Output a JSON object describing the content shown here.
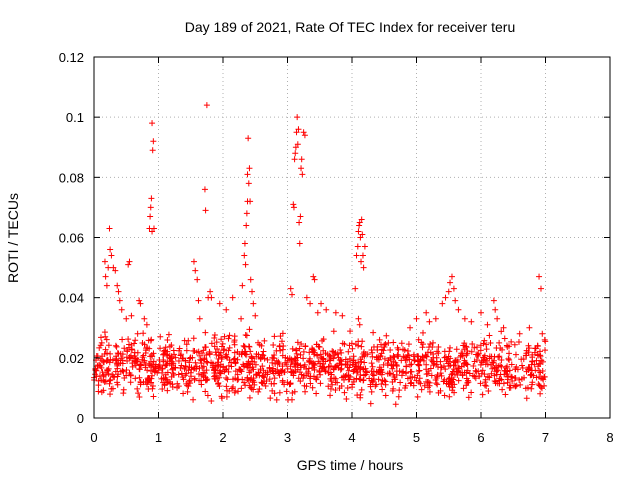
{
  "chart_data": {
    "type": "scatter",
    "title": "Day 189 of 2021, Rate Of TEC Index for receiver teru",
    "xlabel": "GPS time / hours",
    "ylabel": "ROTI / TECUs",
    "xlim": [
      0,
      8
    ],
    "ylim": [
      0,
      0.12
    ],
    "xticks": [
      "0",
      "1",
      "2",
      "3",
      "4",
      "5",
      "6",
      "7",
      "8"
    ],
    "yticks": [
      "0",
      "0.02",
      "0.04",
      "0.06",
      "0.08",
      "0.1",
      "0.12"
    ],
    "grid": true,
    "marker": "+",
    "color": "#ff0000",
    "series": [
      {
        "name": "ROTI",
        "baseline_description": "dense band of points between about 0.003 and 0.03 TECUs from 0 to 7 hours",
        "band": {
          "x_start": 0.0,
          "x_end": 7.0,
          "y_low": 0.003,
          "y_high": 0.03,
          "count": 1400
        },
        "points": [
          [
            0.17,
            0.052
          ],
          [
            0.18,
            0.047
          ],
          [
            0.2,
            0.044
          ],
          [
            0.22,
            0.05
          ],
          [
            0.24,
            0.063
          ],
          [
            0.25,
            0.056
          ],
          [
            0.27,
            0.054
          ],
          [
            0.3,
            0.05
          ],
          [
            0.33,
            0.049
          ],
          [
            0.36,
            0.044
          ],
          [
            0.38,
            0.042
          ],
          [
            0.4,
            0.039
          ],
          [
            0.43,
            0.036
          ],
          [
            0.5,
            0.033
          ],
          [
            0.53,
            0.051
          ],
          [
            0.55,
            0.052
          ],
          [
            0.58,
            0.034
          ],
          [
            0.7,
            0.039
          ],
          [
            0.72,
            0.038
          ],
          [
            0.78,
            0.033
          ],
          [
            0.82,
            0.031
          ],
          [
            0.86,
            0.063
          ],
          [
            0.87,
            0.067
          ],
          [
            0.88,
            0.07
          ],
          [
            0.89,
            0.073
          ],
          [
            0.9,
            0.062
          ],
          [
            0.9,
            0.098
          ],
          [
            0.91,
            0.089
          ],
          [
            0.92,
            0.092
          ],
          [
            0.93,
            0.063
          ],
          [
            1.55,
            0.052
          ],
          [
            1.57,
            0.049
          ],
          [
            1.6,
            0.046
          ],
          [
            1.62,
            0.039
          ],
          [
            1.64,
            0.033
          ],
          [
            1.72,
            0.076
          ],
          [
            1.73,
            0.069
          ],
          [
            1.75,
            0.104
          ],
          [
            1.77,
            0.04
          ],
          [
            1.8,
            0.042
          ],
          [
            1.82,
            0.04
          ],
          [
            1.95,
            0.038
          ],
          [
            2.05,
            0.036
          ],
          [
            2.15,
            0.04
          ],
          [
            2.28,
            0.033
          ],
          [
            2.3,
            0.044
          ],
          [
            2.33,
            0.054
          ],
          [
            2.34,
            0.058
          ],
          [
            2.35,
            0.051
          ],
          [
            2.36,
            0.064
          ],
          [
            2.37,
            0.068
          ],
          [
            2.38,
            0.072
          ],
          [
            2.38,
            0.081
          ],
          [
            2.39,
            0.093
          ],
          [
            2.4,
            0.078
          ],
          [
            2.41,
            0.083
          ],
          [
            2.42,
            0.072
          ],
          [
            2.43,
            0.046
          ],
          [
            2.45,
            0.042
          ],
          [
            2.47,
            0.038
          ],
          [
            2.5,
            0.034
          ],
          [
            3.05,
            0.043
          ],
          [
            3.07,
            0.041
          ],
          [
            3.09,
            0.071
          ],
          [
            3.1,
            0.07
          ],
          [
            3.11,
            0.086
          ],
          [
            3.12,
            0.088
          ],
          [
            3.13,
            0.09
          ],
          [
            3.14,
            0.095
          ],
          [
            3.15,
            0.1
          ],
          [
            3.16,
            0.091
          ],
          [
            3.17,
            0.096
          ],
          [
            3.18,
            0.065
          ],
          [
            3.19,
            0.058
          ],
          [
            3.2,
            0.067
          ],
          [
            3.21,
            0.083
          ],
          [
            3.22,
            0.086
          ],
          [
            3.23,
            0.081
          ],
          [
            3.25,
            0.095
          ],
          [
            3.27,
            0.094
          ],
          [
            3.3,
            0.04
          ],
          [
            3.35,
            0.038
          ],
          [
            3.4,
            0.047
          ],
          [
            3.42,
            0.046
          ],
          [
            3.47,
            0.035
          ],
          [
            3.52,
            0.038
          ],
          [
            3.6,
            0.036
          ],
          [
            3.75,
            0.035
          ],
          [
            3.85,
            0.034
          ],
          [
            4.05,
            0.043
          ],
          [
            4.07,
            0.054
          ],
          [
            4.09,
            0.057
          ],
          [
            4.1,
            0.062
          ],
          [
            4.11,
            0.064
          ],
          [
            4.12,
            0.065
          ],
          [
            4.13,
            0.06
          ],
          [
            4.14,
            0.052
          ],
          [
            4.15,
            0.066
          ],
          [
            4.16,
            0.061
          ],
          [
            4.17,
            0.054
          ],
          [
            4.18,
            0.05
          ],
          [
            4.2,
            0.057
          ],
          [
            4.1,
            0.033
          ],
          [
            4.12,
            0.031
          ],
          [
            4.9,
            0.03
          ],
          [
            5.0,
            0.033
          ],
          [
            5.15,
            0.035
          ],
          [
            5.2,
            0.032
          ],
          [
            5.3,
            0.033
          ],
          [
            5.4,
            0.038
          ],
          [
            5.45,
            0.04
          ],
          [
            5.5,
            0.042
          ],
          [
            5.52,
            0.045
          ],
          [
            5.55,
            0.047
          ],
          [
            5.58,
            0.043
          ],
          [
            5.6,
            0.039
          ],
          [
            5.65,
            0.036
          ],
          [
            5.75,
            0.033
          ],
          [
            5.85,
            0.032
          ],
          [
            6.0,
            0.035
          ],
          [
            6.1,
            0.031
          ],
          [
            6.2,
            0.039
          ],
          [
            6.22,
            0.036
          ],
          [
            6.25,
            0.033
          ],
          [
            6.35,
            0.03
          ],
          [
            6.6,
            0.028
          ],
          [
            6.75,
            0.03
          ],
          [
            6.9,
            0.047
          ],
          [
            6.93,
            0.043
          ],
          [
            6.95,
            0.028
          ]
        ]
      }
    ]
  }
}
